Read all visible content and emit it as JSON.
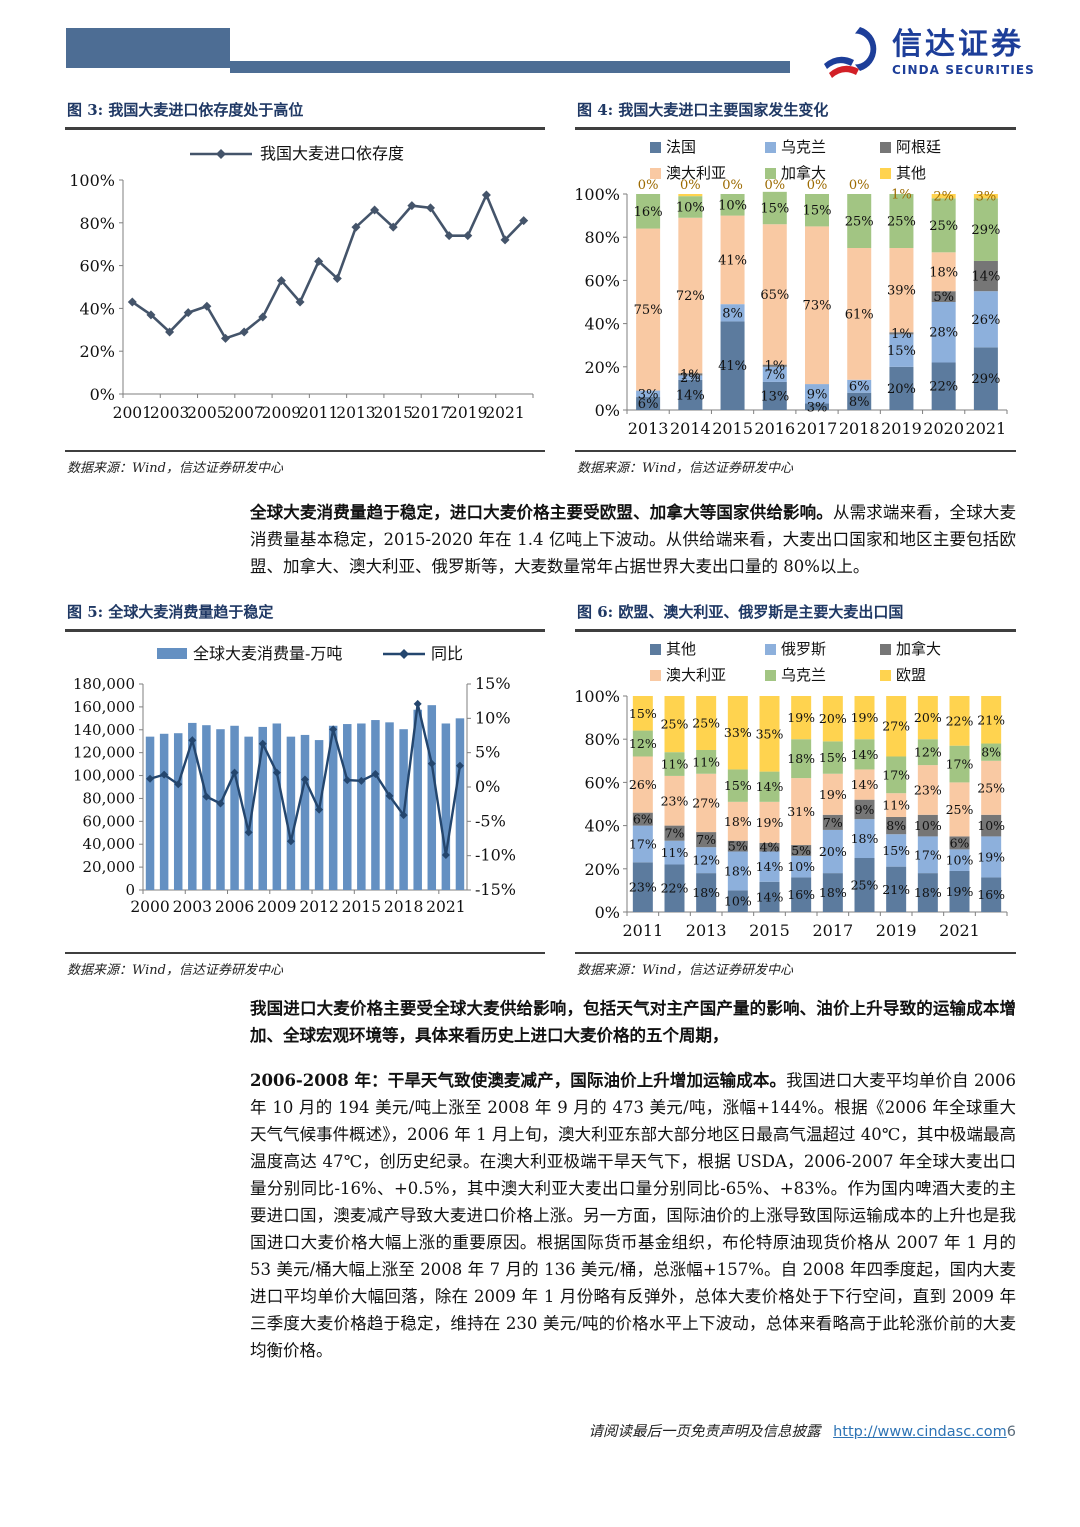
{
  "header": {
    "brand_cn": "信达证券",
    "brand_en": "CINDA SECURITIES"
  },
  "figures": {
    "fig3": {
      "title": "图 3: 我国大麦进口依存度处于高位",
      "source": "数据来源：Wind，信达证券研发中心"
    },
    "fig4": {
      "title": "图 4: 我国大麦进口主要国家发生变化",
      "source": "数据来源：Wind，信达证券研发中心"
    },
    "fig5": {
      "title": "图 5: 全球大麦消费量趋于稳定",
      "source": "数据来源：Wind，信达证券研发中心"
    },
    "fig6": {
      "title": "图 6: 欧盟、澳大利亚、俄罗斯是主要大麦出口国",
      "source": "数据来源：Wind，信达证券研发中心"
    }
  },
  "paragraphs": {
    "p1": {
      "bold": "全球大麦消费量趋于稳定，进口大麦价格主要受欧盟、加拿大等国家供给影响。",
      "rest": "从需求端来看，全球大麦消费量基本稳定，2015-2020 年在 1.4 亿吨上下波动。从供给端来看，大麦出口国家和地区主要包括欧盟、加拿大、澳大利亚、俄罗斯等，大麦数量常年占据世界大麦出口量的 80%以上。"
    },
    "p2": {
      "bold": "我国进口大麦价格主要受全球大麦供给影响，包括天气对主产国产量的影响、油价上升导致的运输成本增加、全球宏观环境等，具体来看历史上进口大麦价格的五个周期，",
      "rest": ""
    },
    "p3": {
      "bold": "2006-2008 年：干旱天气致使澳麦减产，国际油价上升增加运输成本。",
      "rest": "我国进口大麦平均单价自 2006 年 10 月的 194 美元/吨上涨至 2008 年 9 月的 473 美元/吨，涨幅+144%。根据《2006 年全球重大天气气候事件概述》，2006 年 1 月上旬，澳大利亚东部大部分地区日最高气温超过 40℃，其中极端最高温度高达 47℃，创历史纪录。在澳大利亚极端干旱天气下，根据 USDA，2006-2007 年全球大麦出口量分别同比-16%、+0.5%，其中澳大利亚大麦出口量分别同比-65%、+83%。作为国内啤酒大麦的主要进口国，澳麦减产导致大麦进口价格上涨。另一方面，国际油价的上涨导致国际运输成本的上升也是我国进口大麦价格大幅上涨的重要原因。根据国际货币基金组织，布伦特原油现货价格从 2007 年 1 月的 53 美元/桶大幅上涨至 2008 年 7 月的 136 美元/桶，总涨幅+157%。自 2008 年四季度起，国内大麦进口平均单价大幅回落，除在 2009 年 1 月份略有反弹外，总体大麦价格处于下行空间，直到 2009 年三季度大麦价格趋于稳定，维持在 230 美元/吨的价格水平上下波动，总体来看略高于此轮涨价前的大麦均衡价格。"
    }
  },
  "footer": {
    "disclaimer": "请阅读最后一页免责声明及信息披露",
    "url": "http://www.cindasc.com",
    "page": "6"
  },
  "chart_data": [
    {
      "id": "fig3",
      "type": "line",
      "legend": [
        "我国大麦进口依存度"
      ],
      "line_color": "#44546a",
      "x": [
        "2001",
        "2002",
        "2003",
        "2004",
        "2005",
        "2006",
        "2007",
        "2008",
        "2009",
        "2010",
        "2011",
        "2012",
        "2013",
        "2014",
        "2015",
        "2016",
        "2017",
        "2018",
        "2019",
        "2020",
        "2021",
        "2022"
      ],
      "values": [
        43,
        37,
        29,
        38,
        41,
        26,
        29,
        36,
        53,
        43,
        62,
        54,
        78,
        86,
        78,
        88,
        87,
        74,
        74,
        93,
        72,
        81
      ],
      "ylim": [
        0,
        100
      ],
      "ytick_step": 20,
      "xlabel_every": 2,
      "grid": false,
      "legend_position": "top"
    },
    {
      "id": "fig4",
      "type": "stacked_bar_pct",
      "categories": [
        "2013",
        "2014",
        "2015",
        "2016",
        "2017",
        "2018",
        "2019",
        "2020",
        "2021"
      ],
      "series": [
        {
          "name": "法国",
          "color": "#5c7b9e",
          "values": [
            6,
            14,
            41,
            13,
            3,
            8,
            20,
            22,
            29
          ]
        },
        {
          "name": "乌克兰",
          "color": "#8db0dc",
          "values": [
            3,
            2,
            8,
            7,
            9,
            6,
            15,
            28,
            26
          ]
        },
        {
          "name": "阿根廷",
          "color": "#767676",
          "values": [
            0,
            1,
            0,
            1,
            0,
            0,
            1,
            5,
            14
          ]
        },
        {
          "name": "澳大利亚",
          "color": "#f9c9a3",
          "values": [
            75,
            72,
            41,
            65,
            73,
            61,
            39,
            18,
            0
          ]
        },
        {
          "name": "加拿大",
          "color": "#a2c583",
          "values": [
            16,
            10,
            10,
            15,
            15,
            25,
            25,
            25,
            29
          ]
        },
        {
          "name": "其他",
          "color": "#ffd34f",
          "values": [
            0,
            0,
            0,
            0,
            0,
            0,
            1,
            2,
            3
          ],
          "label_color": "#9c6a00"
        }
      ],
      "ylim": [
        0,
        100
      ],
      "ytick_step": 20,
      "xlabel_every": 1,
      "legend_position": "top"
    },
    {
      "id": "fig5",
      "type": "bar_line_combo",
      "x": [
        "2000",
        "2001",
        "2002",
        "2003",
        "2004",
        "2005",
        "2006",
        "2007",
        "2008",
        "2009",
        "2010",
        "2011",
        "2012",
        "2013",
        "2014",
        "2015",
        "2016",
        "2017",
        "2018",
        "2019",
        "2020",
        "2021",
        "2022"
      ],
      "bars": {
        "name": "全球大麦消费量-万吨",
        "color": "#6490c2",
        "values": [
          134000,
          136500,
          137000,
          146000,
          144000,
          140500,
          143500,
          134000,
          142500,
          145500,
          134000,
          135500,
          131000,
          143500,
          145000,
          145500,
          148500,
          146500,
          140500,
          157500,
          161500,
          145500,
          150000
        ]
      },
      "line": {
        "name": "同比",
        "color": "#24466e",
        "values": [
          1.2,
          1.8,
          0.4,
          6.8,
          -1.4,
          -2.4,
          2.1,
          -6.6,
          6.3,
          2.1,
          -7.9,
          1.1,
          -3.3,
          8.4,
          1.0,
          0.9,
          1.9,
          -1.3,
          -4.1,
          12.1,
          3.4,
          -9.9,
          3.1
        ]
      },
      "ylim_left": [
        0,
        180000
      ],
      "ytick_step_left": 20000,
      "ylim_right": [
        -15,
        15
      ],
      "ytick_step_right": 5,
      "xlabel_every": 3,
      "legend_position": "top"
    },
    {
      "id": "fig6",
      "type": "stacked_bar_pct",
      "categories": [
        "2011",
        "2012",
        "2013",
        "2014",
        "2015",
        "2016",
        "2017",
        "2018",
        "2019",
        "2020",
        "2021",
        "2022"
      ],
      "series": [
        {
          "name": "其他",
          "color": "#5c7b9e",
          "values": [
            23,
            22,
            18,
            10,
            14,
            16,
            18,
            25,
            21,
            18,
            19,
            16
          ]
        },
        {
          "name": "俄罗斯",
          "color": "#8db0dc",
          "values": [
            17,
            11,
            12,
            18,
            14,
            10,
            20,
            18,
            15,
            17,
            10,
            19
          ]
        },
        {
          "name": "加拿大",
          "color": "#767676",
          "values": [
            6,
            7,
            7,
            5,
            4,
            5,
            7,
            9,
            8,
            10,
            6,
            10
          ]
        },
        {
          "name": "澳大利亚",
          "color": "#f9c9a3",
          "values": [
            26,
            23,
            27,
            18,
            19,
            31,
            19,
            14,
            11,
            23,
            25,
            25
          ]
        },
        {
          "name": "乌克兰",
          "color": "#a2c583",
          "values": [
            12,
            11,
            11,
            15,
            14,
            18,
            15,
            14,
            17,
            12,
            17,
            8
          ]
        },
        {
          "name": "欧盟",
          "color": "#ffd34f",
          "values": [
            15,
            25,
            25,
            33,
            35,
            19,
            20,
            19,
            27,
            20,
            22,
            21
          ]
        }
      ],
      "ylim": [
        0,
        100
      ],
      "ytick_step": 20,
      "xlabel_every": 2,
      "legend_position": "top"
    }
  ]
}
